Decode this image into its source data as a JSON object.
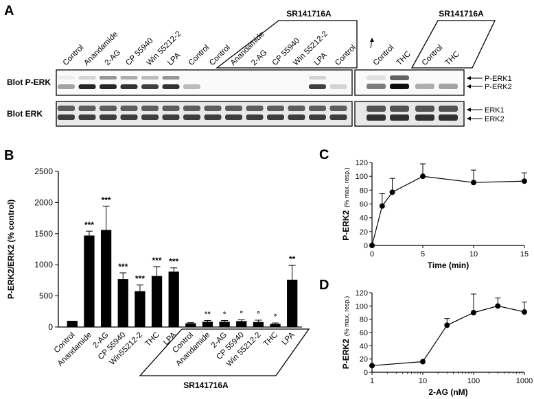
{
  "panel_letters": [
    "A",
    "B",
    "C",
    "D"
  ],
  "blot": {
    "left_lanes": [
      "Control",
      "Anandamide",
      "2-AG",
      "CP 55940",
      "Win 55212-2",
      "LPA",
      "Control",
      "Control",
      "Anandamide",
      "2-AG",
      "CP 55940",
      "Win 55212-2",
      "LPA",
      "Control"
    ],
    "right_lanes": [
      "Control",
      "THC",
      "Control",
      "THC"
    ],
    "sr_label_left": "SR141716A",
    "sr_label_right": "SR141716A",
    "row_perk": "Blot  P-ERK",
    "row_erk": "Blot  ERK",
    "right_labels": [
      "P-ERK1",
      "P-ERK2",
      "ERK1",
      "ERK2"
    ]
  },
  "chart_data": [
    {
      "type": "bar",
      "categories": [
        "Control",
        "Anandamide",
        "2-AG",
        "CP 55940",
        "Win55212-2",
        "THC",
        "LPA",
        "Control",
        "Anandamide",
        "2-AG",
        "CP 55940",
        "Win 55212-2",
        "THC",
        "LPA"
      ],
      "values": [
        100,
        1470,
        1560,
        770,
        575,
        820,
        890,
        60,
        85,
        85,
        95,
        80,
        50,
        760
      ],
      "errors": [
        0,
        70,
        380,
        100,
        100,
        150,
        60,
        10,
        20,
        20,
        20,
        30,
        15,
        230
      ],
      "annotations": [
        "",
        "***",
        "***",
        "***",
        "***",
        "***",
        "***",
        "",
        "°°",
        "°",
        "°",
        "°",
        "°",
        "**"
      ],
      "group_label": "SR141716A",
      "ylabel": "P-ERK2/ERK2 (% control)",
      "yticks": [
        0,
        500,
        1000,
        1500,
        2000,
        2500
      ],
      "ylim": [
        0,
        2500
      ]
    },
    {
      "type": "line",
      "x": [
        0,
        1,
        2,
        5,
        10,
        15
      ],
      "y": [
        0,
        57,
        77,
        100,
        91,
        93
      ],
      "errors": [
        0,
        18,
        20,
        18,
        18,
        12
      ],
      "xlabel": "Time (min)",
      "ylabel": "P-ERK2",
      "ylabel_unit": "(% max. resp.)",
      "xticks": [
        0,
        5,
        10,
        15
      ],
      "yticks": [
        0,
        20,
        40,
        60,
        80,
        100,
        120
      ],
      "xlim": [
        0,
        15
      ],
      "ylim": [
        0,
        120
      ]
    },
    {
      "type": "line",
      "x": [
        1,
        10,
        30,
        100,
        300,
        1000
      ],
      "y": [
        10,
        16,
        71,
        90,
        100,
        91
      ],
      "errors": [
        0,
        0,
        10,
        28,
        12,
        15
      ],
      "xscale": "log",
      "xlabel": "2-AG (nM)",
      "ylabel": "P-ERK2",
      "ylabel_unit": "(% max. resp.)",
      "xticks": [
        1,
        10,
        100,
        1000
      ],
      "yticks": [
        0,
        20,
        40,
        60,
        80,
        100,
        120
      ],
      "xlim": [
        1,
        1000
      ],
      "ylim": [
        0,
        120
      ]
    }
  ]
}
